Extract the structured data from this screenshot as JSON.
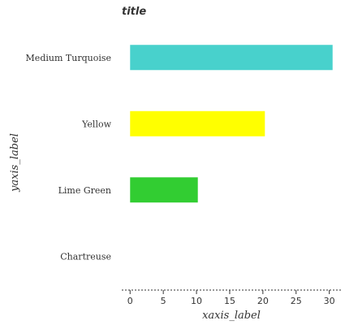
{
  "chart_data": {
    "type": "bar",
    "orientation": "horizontal",
    "title": "title",
    "xlabel": "xaxis_label",
    "ylabel": "yaxis_label",
    "categories": [
      "Chartreuse",
      "Lime Green",
      "Yellow",
      "Medium Turquoise"
    ],
    "values": [
      0,
      10.2,
      20.3,
      30.5
    ],
    "colors": [
      "#7fff00",
      "#32cd32",
      "#ffff00",
      "#48d1cc"
    ],
    "xlim": [
      -1.5,
      32
    ],
    "xticks": [
      0,
      5,
      10,
      15,
      20,
      25,
      30
    ],
    "grid": false
  }
}
